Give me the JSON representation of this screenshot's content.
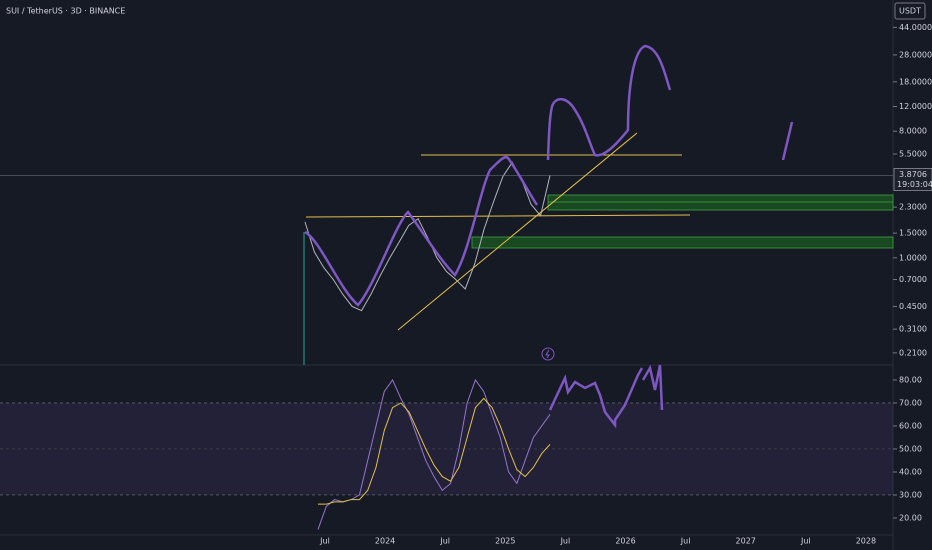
{
  "chart_data": [
    {
      "type": "line",
      "title": "SUI / TetherUS · 3D · BINANCE",
      "currency": "USDT",
      "log_scale": true,
      "color": "#b2b5be",
      "values": [
        1.8,
        1.1,
        0.85,
        0.7,
        0.55,
        0.45,
        0.42,
        0.55,
        0.75,
        1.0,
        1.3,
        1.7,
        1.9,
        1.4,
        1.0,
        0.8,
        0.7,
        0.6,
        0.9,
        1.6,
        2.5,
        3.8,
        4.8,
        3.6,
        2.4,
        2.0,
        3.87
      ],
      "ylim": [
        0.172,
        69
      ],
      "yticks": [
        {
          "value": 44,
          "label": "44.0000"
        },
        {
          "value": 28,
          "label": "28.0000"
        },
        {
          "value": 18,
          "label": "18.0000"
        },
        {
          "value": 12,
          "label": "12.0000"
        },
        {
          "value": 8,
          "label": "8.0000"
        },
        {
          "value": 5.5,
          "label": "5.5000"
        },
        {
          "value": 2.3,
          "label": "2.3000"
        },
        {
          "value": 1.5,
          "label": "1.5000"
        },
        {
          "value": 1,
          "label": "1.0000"
        },
        {
          "value": 0.7,
          "label": "0.7000"
        },
        {
          "value": 0.45,
          "label": "0.4500"
        },
        {
          "value": 0.31,
          "label": "0.3100"
        },
        {
          "value": 0.21,
          "label": "0.2100"
        }
      ],
      "last_price": 3.8706,
      "countdown": "19:03:04",
      "xtick_labels": [
        "Jul",
        "2024",
        "Jul",
        "2025",
        "Jul",
        "2026",
        "Jul",
        "2027",
        "Jul",
        "2028"
      ]
    },
    {
      "type": "line",
      "series": [
        {
          "color": "#9575cd",
          "values": [
            15,
            25,
            28,
            27,
            28,
            30,
            45,
            60,
            75,
            80,
            72,
            65,
            55,
            45,
            38,
            32,
            35,
            50,
            70,
            80,
            75,
            65,
            55,
            40,
            35,
            45,
            55,
            60,
            65
          ]
        },
        {
          "color": "#e3c04a",
          "values": [
            26,
            26,
            27,
            27,
            28,
            28,
            32,
            42,
            58,
            68,
            70,
            66,
            58,
            50,
            43,
            38,
            36,
            42,
            55,
            68,
            72,
            68,
            60,
            50,
            41,
            38,
            42,
            48,
            52
          ]
        }
      ],
      "ylim": [
        12.6,
        86.5
      ],
      "yticks": [
        {
          "value": 80,
          "label": "80.00"
        },
        {
          "value": 70,
          "label": "70.00"
        },
        {
          "value": 60,
          "label": "60.00"
        },
        {
          "value": 50,
          "label": "50.00"
        },
        {
          "value": 40,
          "label": "40.00"
        },
        {
          "value": 30,
          "label": "30.00"
        },
        {
          "value": 20,
          "label": "20.00"
        }
      ],
      "band": [
        30,
        70
      ]
    }
  ]
}
